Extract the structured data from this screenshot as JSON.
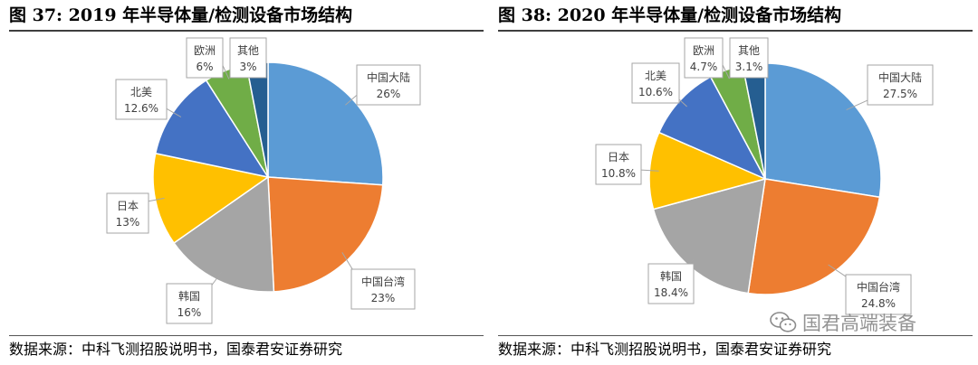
{
  "figures": [
    {
      "title": "图 37: 2019 年半导体量/检测设备市场结构",
      "source": "数据来源：中科飞测招股说明书，国泰君安证券研究"
    },
    {
      "title": "图 38: 2020 年半导体量/检测设备市场结构",
      "source": "数据来源：中科飞测招股说明书，国泰君安证券研究"
    }
  ],
  "watermark": {
    "text": "国君高端装备",
    "icon": "wechat-icon"
  },
  "colors": {
    "中国大陆": "#5B9BD5",
    "中国台湾": "#ED7D31",
    "韩国": "#A5A5A5",
    "日本": "#FFC000",
    "北美": "#4472C4",
    "欧洲": "#70AD47",
    "其他": "#255E91"
  },
  "chart_data": [
    {
      "type": "pie",
      "title": "图 37: 2019 年半导体量/检测设备市场结构",
      "categories": [
        "中国大陆",
        "中国台湾",
        "韩国",
        "日本",
        "北美",
        "欧洲",
        "其他"
      ],
      "values": [
        26,
        23,
        16,
        13,
        12.6,
        6,
        3
      ],
      "value_labels": [
        "26%",
        "23%",
        "16%",
        "13%",
        "12.6%",
        "6%",
        "3%"
      ],
      "start": "12 o'clock, clockwise",
      "legend": "data labels with callouts"
    },
    {
      "type": "pie",
      "title": "图 38: 2020 年半导体量/检测设备市场结构",
      "categories": [
        "中国大陆",
        "中国台湾",
        "韩国",
        "日本",
        "北美",
        "欧洲",
        "其他"
      ],
      "values": [
        27.5,
        24.8,
        18.4,
        10.8,
        10.6,
        4.7,
        3.1
      ],
      "value_labels": [
        "27.5%",
        "24.8%",
        "18.4%",
        "10.8%",
        "10.6%",
        "4.7%",
        "3.1%"
      ],
      "start": "12 o'clock, clockwise",
      "legend": "data labels with callouts"
    }
  ]
}
